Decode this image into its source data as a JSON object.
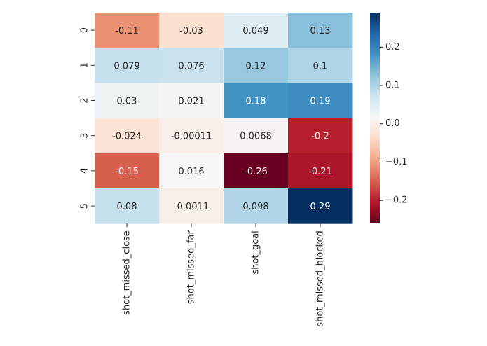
{
  "chart_data": {
    "type": "heatmap",
    "title": "",
    "xlabel": "",
    "ylabel": "",
    "columns": [
      "shot_missed_close",
      "shot_missed_far",
      "shot_goal",
      "shot_missed_blocked"
    ],
    "rows": [
      "0",
      "1",
      "2",
      "3",
      "4",
      "5"
    ],
    "values": [
      [
        -0.11,
        -0.03,
        0.049,
        0.13
      ],
      [
        0.079,
        0.076,
        0.12,
        0.1
      ],
      [
        0.03,
        0.021,
        0.18,
        0.19
      ],
      [
        -0.024,
        -0.00011,
        0.0068,
        -0.2
      ],
      [
        -0.15,
        0.016,
        -0.26,
        -0.21
      ],
      [
        0.08,
        -0.0011,
        0.098,
        0.29
      ]
    ],
    "cell_labels": [
      [
        "-0.11",
        "-0.03",
        "0.049",
        "0.13"
      ],
      [
        "0.079",
        "0.076",
        "0.12",
        "0.1"
      ],
      [
        "0.03",
        "0.021",
        "0.18",
        "0.19"
      ],
      [
        "-0.024",
        "-0.00011",
        "0.0068",
        "-0.2"
      ],
      [
        "-0.15",
        "0.016",
        "-0.26",
        "-0.21"
      ],
      [
        "0.08",
        "-0.0011",
        "0.098",
        "0.29"
      ]
    ],
    "colormap": "RdBu",
    "vmin": -0.26,
    "vmax": 0.29,
    "colorbar": {
      "ticks": [
        0.2,
        0.1,
        0.0,
        -0.1,
        -0.2
      ],
      "tick_labels": [
        "0.2",
        "0.1",
        "0.0",
        "−0.1",
        "−0.2"
      ],
      "placement": "right"
    }
  }
}
